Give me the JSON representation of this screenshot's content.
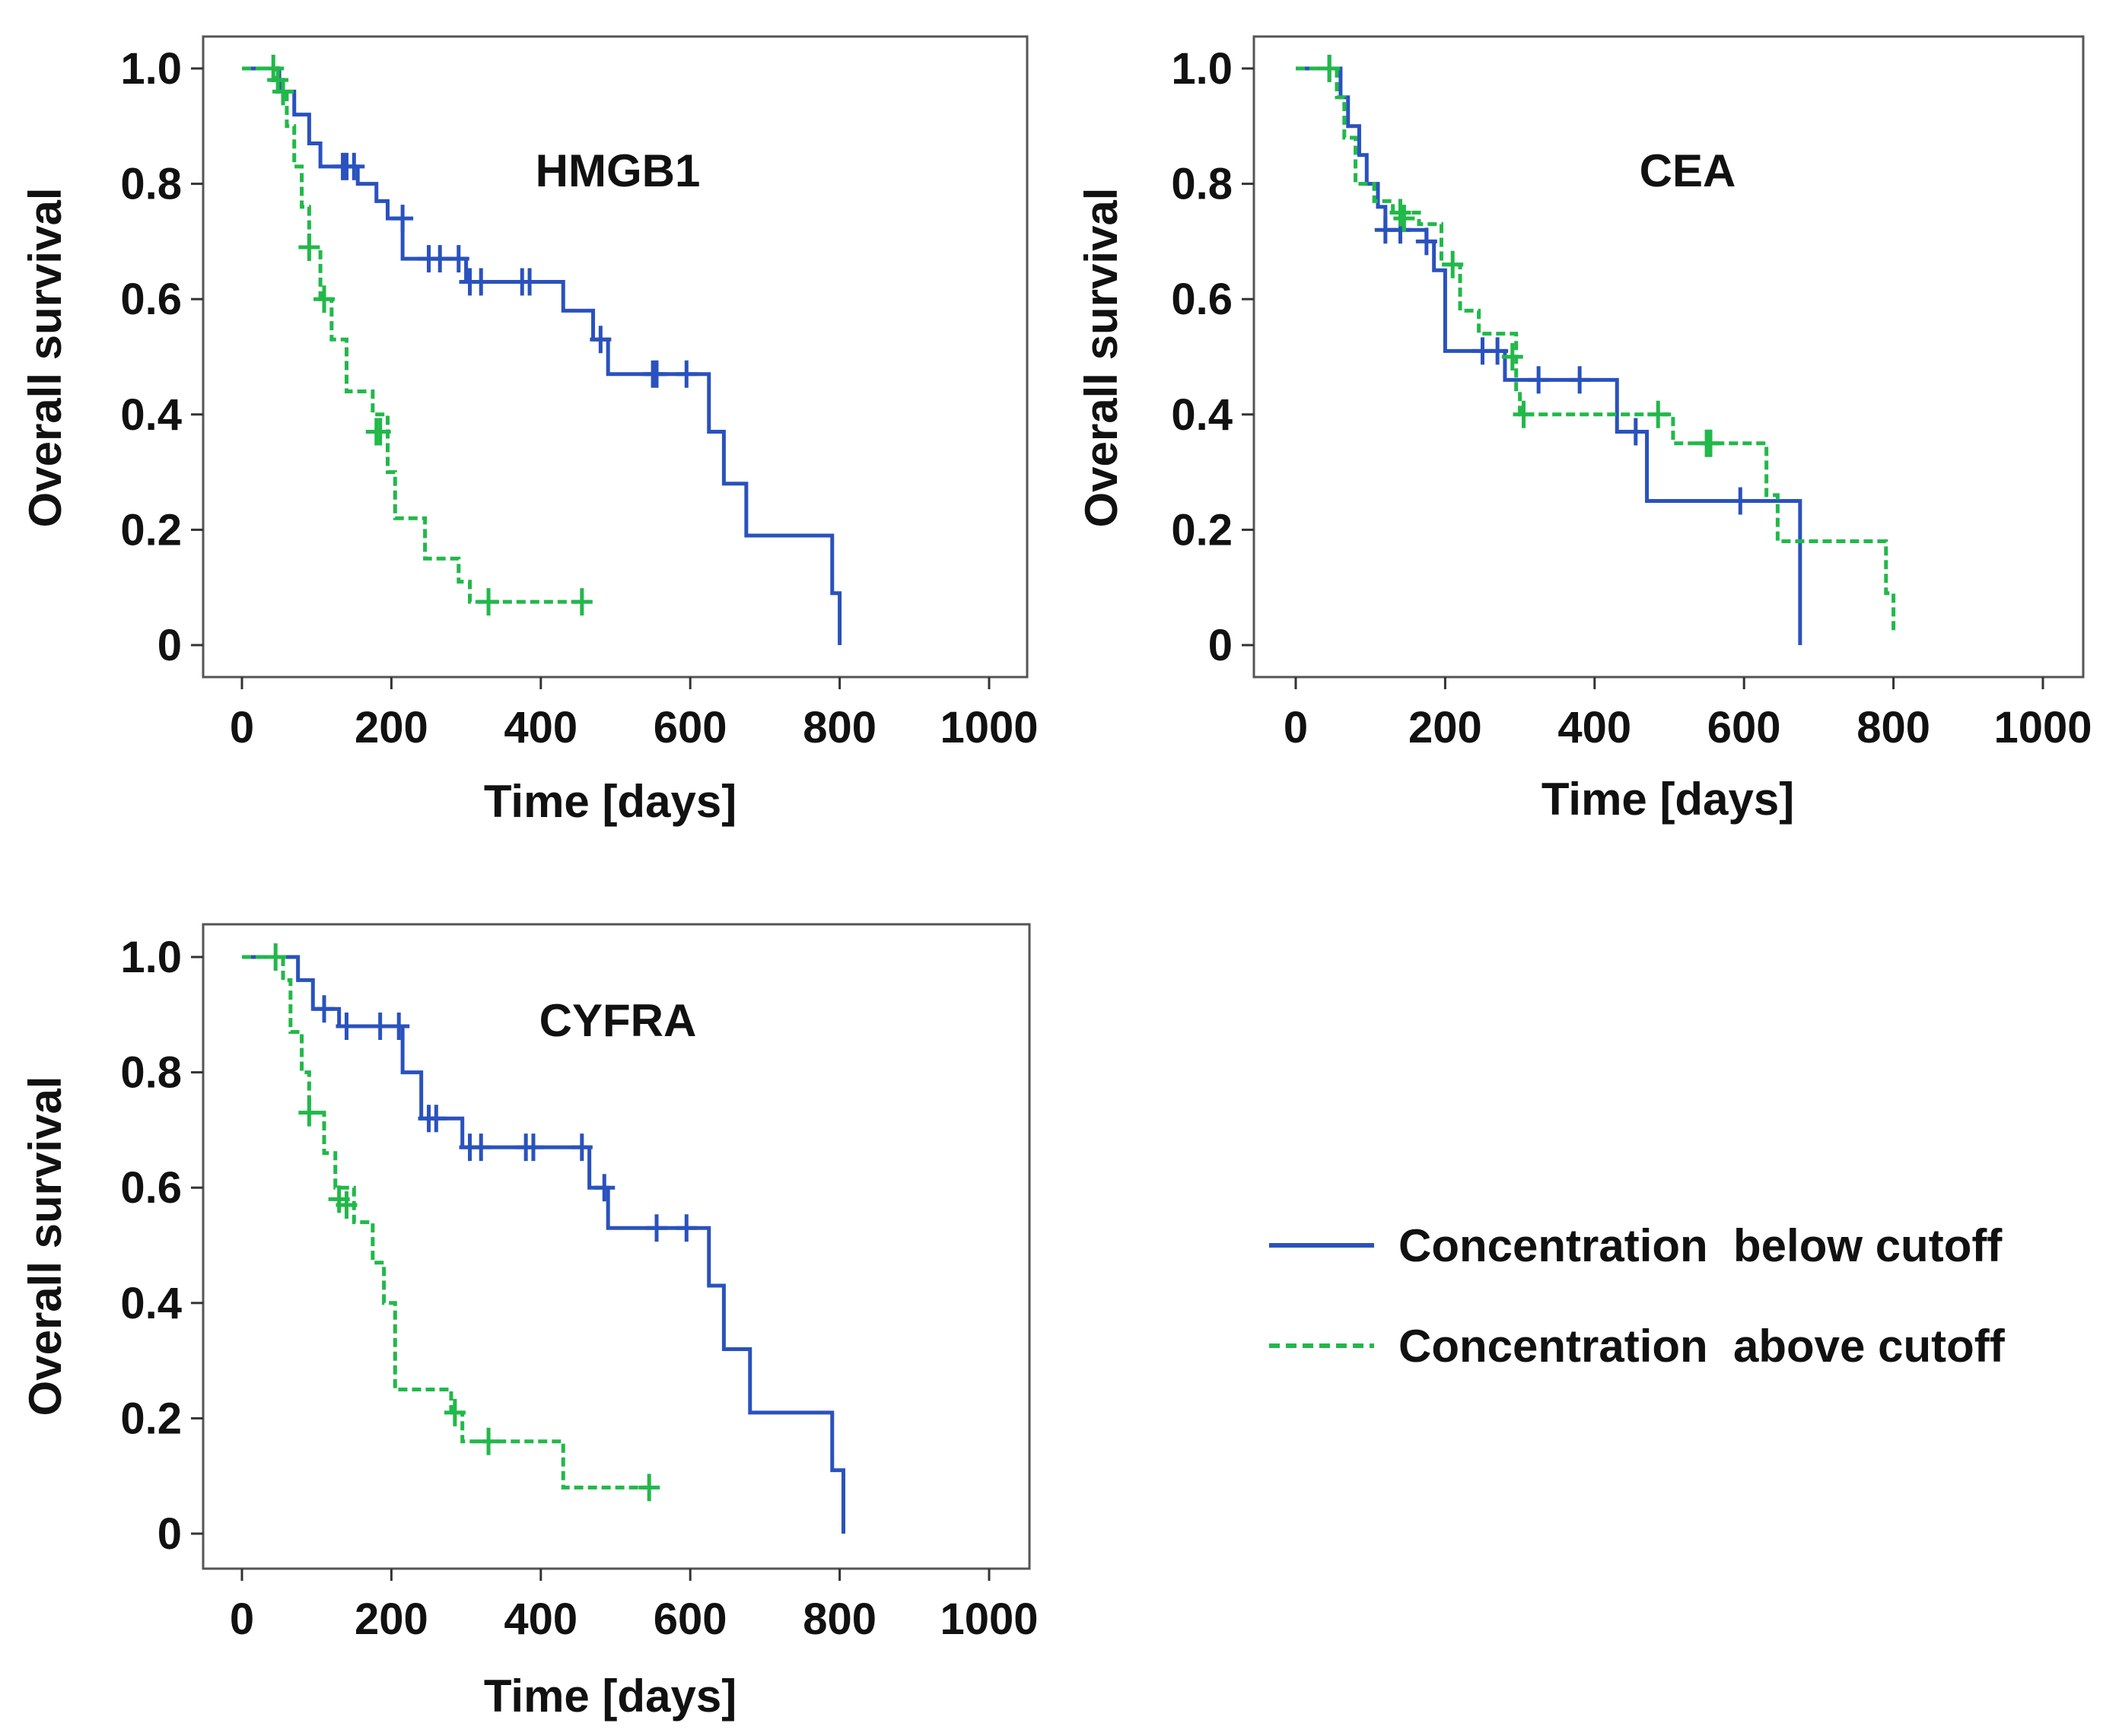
{
  "colors": {
    "below": "#2a52be",
    "above": "#22b84a",
    "axis": "#333333",
    "frame": "#555555",
    "text": "#111111"
  },
  "legend": {
    "below_label": "Concentration  below cutoff",
    "above_label": "Concentration  above cutoff"
  },
  "chart_data": [
    {
      "type": "line",
      "subtype": "kaplan-meier step",
      "title": "HMGB1",
      "xlabel": "Time [days]",
      "ylabel": "Overall survival",
      "xlim": [
        -50,
        1050
      ],
      "ylim": [
        -0.05,
        1.05
      ],
      "xticks": [
        0,
        200,
        400,
        600,
        800,
        1000
      ],
      "yticks": [
        0,
        0.2,
        0.4,
        0.6,
        0.8,
        1.0
      ],
      "xtick_labels": [
        "0",
        "200",
        "400",
        "600",
        "800",
        "1000"
      ],
      "ytick_labels": [
        "0",
        "0.2",
        "0.4",
        "0.6",
        "0.8",
        "1.0"
      ],
      "series": [
        {
          "name": "Concentration below cutoff",
          "key": "below",
          "style": "solid",
          "steps": [
            [
              0,
              1.0
            ],
            [
              50,
              0.96
            ],
            [
              70,
              0.92
            ],
            [
              90,
              0.87
            ],
            [
              105,
              0.83
            ],
            [
              155,
              0.8
            ],
            [
              180,
              0.77
            ],
            [
              195,
              0.74
            ],
            [
              215,
              0.67
            ],
            [
              300,
              0.63
            ],
            [
              430,
              0.58
            ],
            [
              470,
              0.53
            ],
            [
              490,
              0.47
            ],
            [
              625,
              0.37
            ],
            [
              645,
              0.28
            ],
            [
              675,
              0.19
            ],
            [
              790,
              0.09
            ],
            [
              800,
              0.0
            ]
          ],
          "end": 800,
          "censored": [
            [
              135,
              0.83
            ],
            [
              140,
              0.83
            ],
            [
              150,
              0.83
            ],
            [
              215,
              0.74
            ],
            [
              250,
              0.67
            ],
            [
              265,
              0.67
            ],
            [
              290,
              0.67
            ],
            [
              305,
              0.63
            ],
            [
              320,
              0.63
            ],
            [
              375,
              0.63
            ],
            [
              385,
              0.63
            ],
            [
              480,
              0.53
            ],
            [
              550,
              0.47
            ],
            [
              555,
              0.47
            ],
            [
              595,
              0.47
            ]
          ]
        },
        {
          "name": "Concentration above cutoff",
          "key": "above",
          "style": "dashed",
          "steps": [
            [
              0,
              1.0
            ],
            [
              45,
              0.98
            ],
            [
              55,
              0.96
            ],
            [
              60,
              0.9
            ],
            [
              70,
              0.83
            ],
            [
              80,
              0.76
            ],
            [
              90,
              0.69
            ],
            [
              105,
              0.6
            ],
            [
              120,
              0.53
            ],
            [
              140,
              0.44
            ],
            [
              175,
              0.4
            ],
            [
              195,
              0.3
            ],
            [
              205,
              0.22
            ],
            [
              245,
              0.15
            ],
            [
              290,
              0.11
            ],
            [
              305,
              0.075
            ]
          ],
          "end": 465,
          "censored": [
            [
              42,
              1.0
            ],
            [
              48,
              0.98
            ],
            [
              55,
              0.96
            ],
            [
              90,
              0.69
            ],
            [
              110,
              0.6
            ],
            [
              180,
              0.37
            ],
            [
              185,
              0.37
            ],
            [
              330,
              0.075
            ],
            [
              455,
              0.075
            ]
          ]
        }
      ]
    },
    {
      "type": "line",
      "subtype": "kaplan-meier step",
      "title": "CEA",
      "xlabel": "Time [days]",
      "ylabel": "Overall survival",
      "xlim": [
        -50,
        1050
      ],
      "ylim": [
        -0.05,
        1.05
      ],
      "xticks": [
        0,
        200,
        400,
        600,
        800,
        1000
      ],
      "yticks": [
        0,
        0.2,
        0.4,
        0.6,
        0.8,
        1.0
      ],
      "xtick_labels": [
        "0",
        "200",
        "400",
        "600",
        "800",
        "1000"
      ],
      "ytick_labels": [
        "0",
        "0.2",
        "0.4",
        "0.6",
        "0.8",
        "1.0"
      ],
      "series": [
        {
          "name": "Concentration below cutoff",
          "key": "below",
          "style": "solid",
          "steps": [
            [
              0,
              1.0
            ],
            [
              60,
              0.95
            ],
            [
              70,
              0.9
            ],
            [
              85,
              0.85
            ],
            [
              95,
              0.8
            ],
            [
              110,
              0.76
            ],
            [
              120,
              0.72
            ],
            [
              175,
              0.7
            ],
            [
              185,
              0.65
            ],
            [
              200,
              0.51
            ],
            [
              280,
              0.46
            ],
            [
              430,
              0.37
            ],
            [
              470,
              0.25
            ],
            [
              675,
              0.0
            ]
          ],
          "end": 675,
          "censored": [
            [
              45,
              1.0
            ],
            [
              120,
              0.72
            ],
            [
              140,
              0.72
            ],
            [
              175,
              0.7
            ],
            [
              250,
              0.51
            ],
            [
              270,
              0.51
            ],
            [
              325,
              0.46
            ],
            [
              380,
              0.46
            ],
            [
              455,
              0.37
            ],
            [
              595,
              0.25
            ]
          ]
        },
        {
          "name": "Concentration above cutoff",
          "key": "above",
          "style": "dashed",
          "steps": [
            [
              0,
              1.0
            ],
            [
              55,
              0.95
            ],
            [
              65,
              0.88
            ],
            [
              80,
              0.8
            ],
            [
              105,
              0.77
            ],
            [
              130,
              0.75
            ],
            [
              165,
              0.73
            ],
            [
              195,
              0.66
            ],
            [
              220,
              0.58
            ],
            [
              245,
              0.54
            ],
            [
              295,
              0.44
            ],
            [
              300,
              0.4
            ],
            [
              505,
              0.35
            ],
            [
              630,
              0.26
            ],
            [
              645,
              0.18
            ],
            [
              790,
              0.09
            ],
            [
              800,
              0.02
            ]
          ],
          "end": 800,
          "censored": [
            [
              45,
              1.0
            ],
            [
              140,
              0.75
            ],
            [
              145,
              0.74
            ],
            [
              210,
              0.66
            ],
            [
              290,
              0.5
            ],
            [
              305,
              0.4
            ],
            [
              485,
              0.4
            ],
            [
              550,
              0.35
            ],
            [
              555,
              0.35
            ]
          ]
        }
      ]
    },
    {
      "type": "line",
      "subtype": "kaplan-meier step",
      "title": "CYFRA",
      "xlabel": "Time [days]",
      "ylabel": "Overall survival",
      "xlim": [
        -50,
        1050
      ],
      "ylim": [
        -0.05,
        1.05
      ],
      "xticks": [
        0,
        200,
        400,
        600,
        800,
        1000
      ],
      "yticks": [
        0,
        0.2,
        0.4,
        0.6,
        0.8,
        1.0
      ],
      "xtick_labels": [
        "0",
        "200",
        "400",
        "600",
        "800",
        "1000"
      ],
      "ytick_labels": [
        "0",
        "0.2",
        "0.4",
        "0.6",
        "0.8",
        "1.0"
      ],
      "series": [
        {
          "name": "Concentration below cutoff",
          "key": "below",
          "style": "solid",
          "steps": [
            [
              0,
              1.0
            ],
            [
              75,
              0.96
            ],
            [
              95,
              0.91
            ],
            [
              130,
              0.88
            ],
            [
              215,
              0.8
            ],
            [
              240,
              0.72
            ],
            [
              295,
              0.67
            ],
            [
              465,
              0.6
            ],
            [
              490,
              0.53
            ],
            [
              625,
              0.43
            ],
            [
              645,
              0.32
            ],
            [
              680,
              0.21
            ],
            [
              790,
              0.11
            ],
            [
              805,
              0.0
            ]
          ],
          "end": 805,
          "censored": [
            [
              110,
              0.91
            ],
            [
              140,
              0.88
            ],
            [
              185,
              0.88
            ],
            [
              210,
              0.88
            ],
            [
              250,
              0.72
            ],
            [
              260,
              0.72
            ],
            [
              305,
              0.67
            ],
            [
              320,
              0.67
            ],
            [
              380,
              0.67
            ],
            [
              390,
              0.67
            ],
            [
              455,
              0.67
            ],
            [
              485,
              0.6
            ],
            [
              555,
              0.53
            ],
            [
              595,
              0.53
            ]
          ]
        },
        {
          "name": "Concentration above cutoff",
          "key": "above",
          "style": "dashed",
          "steps": [
            [
              0,
              1.0
            ],
            [
              55,
              0.96
            ],
            [
              65,
              0.87
            ],
            [
              80,
              0.8
            ],
            [
              90,
              0.73
            ],
            [
              110,
              0.66
            ],
            [
              125,
              0.6
            ],
            [
              150,
              0.54
            ],
            [
              175,
              0.47
            ],
            [
              190,
              0.4
            ],
            [
              205,
              0.25
            ],
            [
              280,
              0.21
            ],
            [
              295,
              0.16
            ],
            [
              430,
              0.08
            ]
          ],
          "end": 550,
          "censored": [
            [
              45,
              1.0
            ],
            [
              90,
              0.73
            ],
            [
              130,
              0.58
            ],
            [
              140,
              0.57
            ],
            [
              285,
              0.21
            ],
            [
              330,
              0.16
            ],
            [
              545,
              0.08
            ]
          ]
        }
      ]
    }
  ]
}
